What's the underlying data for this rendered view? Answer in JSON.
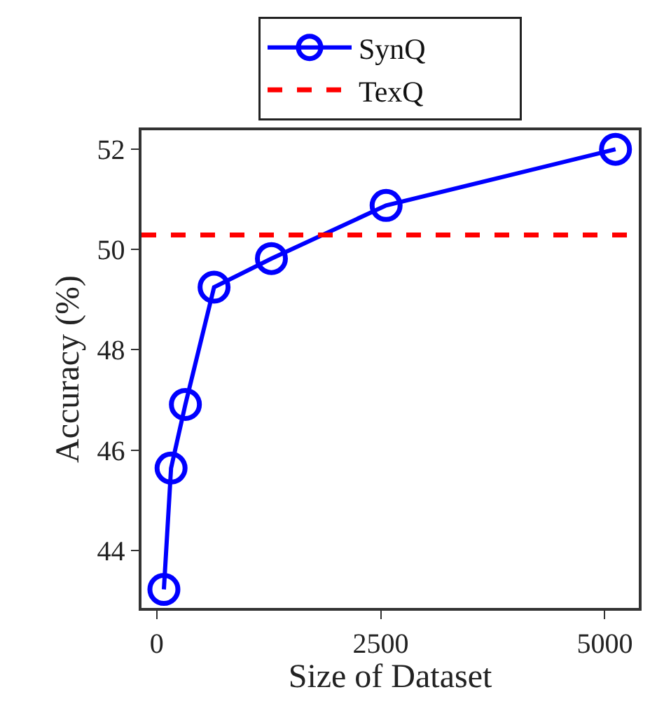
{
  "chart_data": {
    "type": "line",
    "xlabel": "Size of Dataset",
    "ylabel": "Accuracy (%)",
    "x": [
      80,
      160,
      320,
      640,
      1280,
      2560,
      5120
    ],
    "series": [
      {
        "name": "SynQ",
        "color": "#0000ff",
        "values": [
          43.22,
          45.64,
          46.91,
          49.25,
          49.82,
          50.88,
          52.0
        ]
      }
    ],
    "ref_lines": [
      {
        "axis": "y",
        "value": 50.29,
        "label": "TexQ",
        "color": "#ff0000",
        "line_style": "dashed"
      }
    ],
    "xlim": [
      -170,
      5380
    ],
    "xticks": [
      0,
      2500,
      5000
    ],
    "ylim": [
      42.85,
      52.38
    ],
    "yticks": [
      44,
      46,
      48,
      50,
      52
    ],
    "marker": "circle",
    "line_style": "solid",
    "legend": "top"
  }
}
